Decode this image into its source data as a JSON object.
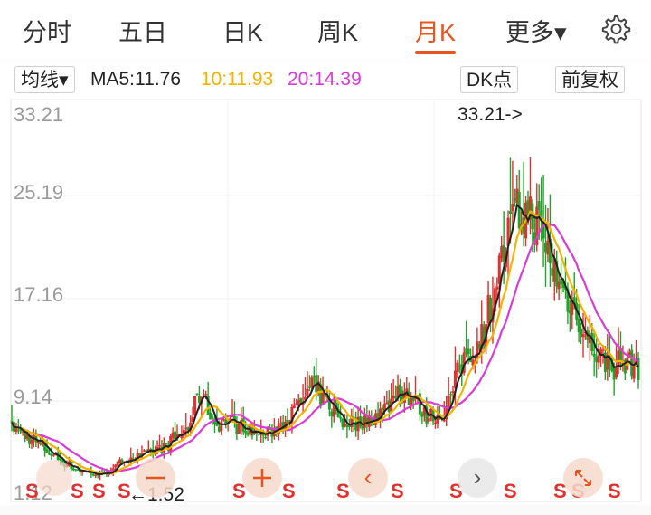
{
  "tabs": [
    {
      "label": "分时",
      "active": false
    },
    {
      "label": "五日",
      "active": false
    },
    {
      "label": "日K",
      "active": false
    },
    {
      "label": "周K",
      "active": false
    },
    {
      "label": "月K",
      "active": true
    },
    {
      "label": "更多▾",
      "active": false
    }
  ],
  "settings_icon": "gear-icon",
  "indicator": {
    "selector": "均线▾",
    "ma5": "MA5:11.76",
    "ma10": "10:11.93",
    "ma20": "20:14.39",
    "dk_button": "DK点",
    "adjust_button": "前复权"
  },
  "colors": {
    "up": "#e03030",
    "down": "#22a22a",
    "ma5": "#222222",
    "ma10": "#f2b200",
    "ma20": "#d93bd6",
    "accent": "#e8541e"
  },
  "chart_data": {
    "type": "candlestick",
    "y_axis_labels": [
      "33.21",
      "25.19",
      "17.16",
      "9.14",
      "1.12"
    ],
    "max_marker": "33.21->",
    "min_marker": "←1.52",
    "signal_label": "S",
    "signals_count": 13,
    "nav": {
      "prev": "‹",
      "next": "›"
    }
  }
}
